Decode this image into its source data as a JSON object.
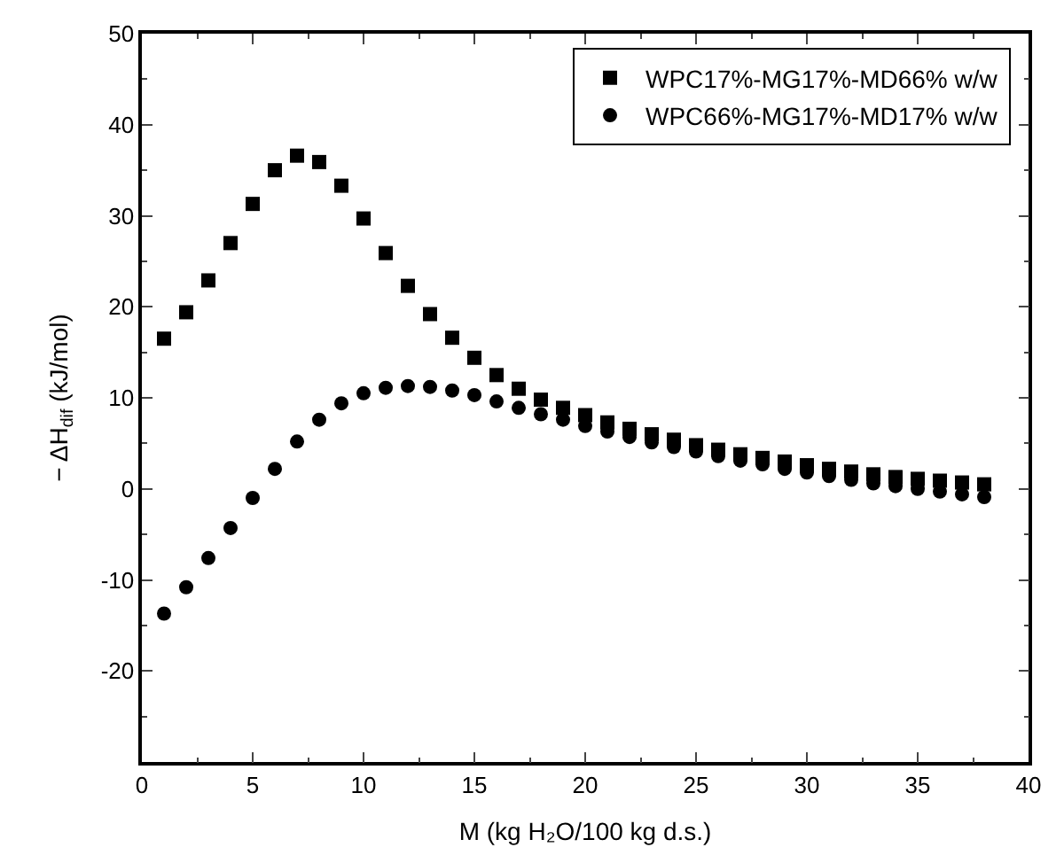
{
  "chart_data": {
    "type": "scatter",
    "xlabel": "M (kg H₂O/100 kg d.s.)",
    "ylabel": "− ΔH$_{dif}$ (kJ/mol)",
    "x": [
      1,
      2,
      3,
      4,
      5,
      6,
      7,
      8,
      9,
      10,
      11,
      12,
      13,
      14,
      15,
      16,
      17,
      18,
      19,
      20,
      21,
      22,
      23,
      24,
      25,
      26,
      27,
      28,
      29,
      30,
      31,
      32,
      33,
      34,
      35,
      36,
      37,
      38
    ],
    "series": [
      {
        "name": "WPC17%-MG17%-MD66% w/w",
        "color": "#000000",
        "marker": "square",
        "values": [
          16.5,
          19.4,
          22.9,
          27,
          31.3,
          35,
          36.6,
          35.9,
          33.3,
          29.7,
          25.9,
          22.3,
          19.2,
          16.6,
          14.4,
          12.5,
          11,
          9.8,
          8.9,
          8.1,
          7.3,
          6.6,
          6,
          5.4,
          4.8,
          4.3,
          3.8,
          3.4,
          3,
          2.6,
          2.2,
          1.9,
          1.6,
          1.3,
          1.1,
          0.9,
          0.7,
          0.5
        ]
      },
      {
        "name": "WPC66%-MG17%-MD17% w/w",
        "color": "#000000",
        "marker": "circle",
        "values": [
          -13.7,
          -10.8,
          -7.6,
          -4.3,
          -1,
          2.2,
          5.2,
          7.6,
          9.4,
          10.5,
          11.1,
          11.3,
          11.2,
          10.8,
          10.3,
          9.6,
          8.9,
          8.2,
          7.6,
          6.9,
          6.3,
          5.7,
          5.1,
          4.6,
          4.1,
          3.6,
          3.1,
          2.7,
          2.2,
          1.8,
          1.4,
          1.0,
          0.6,
          0.3,
          0,
          -0.3,
          -0.6,
          -0.9
        ]
      }
    ],
    "xlim": [
      0,
      40
    ],
    "xticks": [
      0,
      5,
      10,
      15,
      20,
      25,
      30,
      35,
      40
    ],
    "ylim": [
      -30,
      50
    ],
    "yticks": [
      {
        "value": -30,
        "label": null
      },
      -20,
      -10,
      0,
      10,
      20,
      30,
      40,
      50
    ],
    "legend": "top right"
  }
}
